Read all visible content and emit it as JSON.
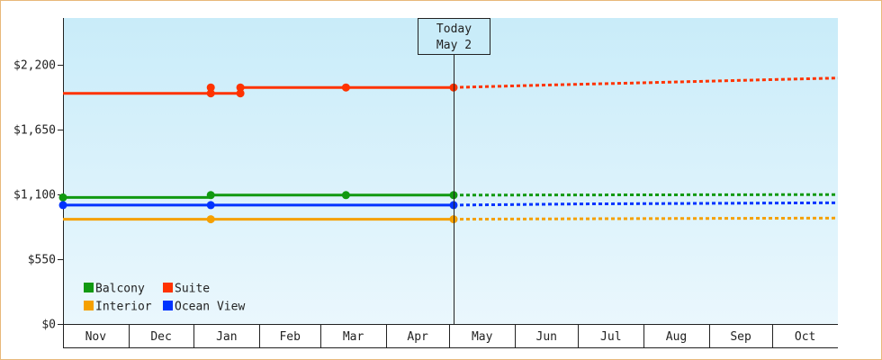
{
  "chart_data": {
    "type": "line",
    "title": "",
    "xlabel": "",
    "ylabel": "",
    "ylim": [
      0,
      2600
    ],
    "y_ticks": [
      {
        "value": 0,
        "label": "$0"
      },
      {
        "value": 550,
        "label": "$550"
      },
      {
        "value": 1100,
        "label": "$1,100"
      },
      {
        "value": 1650,
        "label": "$1,650"
      },
      {
        "value": 2200,
        "label": "$2,200"
      }
    ],
    "x_range": [
      "2023-10-30",
      "2024-10-31"
    ],
    "months": [
      {
        "label": "Nov",
        "start": "2023-10-30",
        "end": "2023-11-30"
      },
      {
        "label": "Dec",
        "start": "2023-11-30",
        "end": "2023-12-31"
      },
      {
        "label": "Jan",
        "start": "2023-12-31",
        "end": "2024-01-31"
      },
      {
        "label": "Feb",
        "start": "2024-01-31",
        "end": "2024-02-29"
      },
      {
        "label": "Mar",
        "start": "2024-02-29",
        "end": "2024-03-31"
      },
      {
        "label": "Apr",
        "start": "2024-03-31",
        "end": "2024-04-30"
      },
      {
        "label": "May",
        "start": "2024-04-30",
        "end": "2024-05-31"
      },
      {
        "label": "Jun",
        "start": "2024-05-31",
        "end": "2024-06-30"
      },
      {
        "label": "Jul",
        "start": "2024-06-30",
        "end": "2024-07-31"
      },
      {
        "label": "Aug",
        "start": "2024-07-31",
        "end": "2024-08-31"
      },
      {
        "label": "Sep",
        "start": "2024-08-31",
        "end": "2024-09-30"
      },
      {
        "label": "Oct",
        "start": "2024-09-30",
        "end": "2024-10-31"
      }
    ],
    "today": {
      "line1": "Today",
      "line2": "May 2",
      "date": "2024-05-02"
    },
    "series": [
      {
        "name": "Suite",
        "color": "#ff3300",
        "history": [
          {
            "x": "2023-10-30",
            "y": 1960
          },
          {
            "x": "2024-01-08",
            "y": 1960
          },
          {
            "x": "2024-01-08",
            "y": 2010
          },
          {
            "x": "2024-01-08",
            "y": 1960
          },
          {
            "x": "2024-01-22",
            "y": 1960
          },
          {
            "x": "2024-01-22",
            "y": 2010
          },
          {
            "x": "2024-03-12",
            "y": 2010
          },
          {
            "x": "2024-05-02",
            "y": 2010
          }
        ],
        "markers": [
          {
            "x": "2024-01-08",
            "y": 1960
          },
          {
            "x": "2024-01-08",
            "y": 2010
          },
          {
            "x": "2024-01-22",
            "y": 1960
          },
          {
            "x": "2024-01-22",
            "y": 2010
          },
          {
            "x": "2024-03-12",
            "y": 2010
          },
          {
            "x": "2024-05-02",
            "y": 2010
          }
        ],
        "forecast": [
          {
            "x": "2024-05-02",
            "y": 2010
          },
          {
            "x": "2024-06-15",
            "y": 2030
          },
          {
            "x": "2024-08-01",
            "y": 2050
          },
          {
            "x": "2024-09-15",
            "y": 2070
          },
          {
            "x": "2024-10-31",
            "y": 2090
          }
        ]
      },
      {
        "name": "Balcony",
        "color": "#119911",
        "history": [
          {
            "x": "2023-10-30",
            "y": 1075
          },
          {
            "x": "2024-01-08",
            "y": 1075
          },
          {
            "x": "2024-01-08",
            "y": 1095
          },
          {
            "x": "2024-03-12",
            "y": 1095
          },
          {
            "x": "2024-05-02",
            "y": 1095
          }
        ],
        "markers": [
          {
            "x": "2023-10-30",
            "y": 1075
          },
          {
            "x": "2024-01-08",
            "y": 1095
          },
          {
            "x": "2024-03-12",
            "y": 1095
          },
          {
            "x": "2024-05-02",
            "y": 1095
          }
        ],
        "forecast": [
          {
            "x": "2024-05-02",
            "y": 1095
          },
          {
            "x": "2024-10-31",
            "y": 1100
          }
        ]
      },
      {
        "name": "Ocean View",
        "color": "#0033ff",
        "history": [
          {
            "x": "2023-10-30",
            "y": 1010
          },
          {
            "x": "2024-01-08",
            "y": 1010
          },
          {
            "x": "2024-05-02",
            "y": 1010
          }
        ],
        "markers": [
          {
            "x": "2023-10-30",
            "y": 1010
          },
          {
            "x": "2024-01-08",
            "y": 1010
          },
          {
            "x": "2024-05-02",
            "y": 1010
          }
        ],
        "forecast": [
          {
            "x": "2024-05-02",
            "y": 1010
          },
          {
            "x": "2024-07-01",
            "y": 1020
          },
          {
            "x": "2024-10-31",
            "y": 1030
          }
        ]
      },
      {
        "name": "Interior",
        "color": "#f5a000",
        "history": [
          {
            "x": "2023-10-30",
            "y": 890
          },
          {
            "x": "2024-01-08",
            "y": 890
          },
          {
            "x": "2024-05-02",
            "y": 890
          }
        ],
        "markers": [
          {
            "x": "2024-01-08",
            "y": 890
          },
          {
            "x": "2024-05-02",
            "y": 890
          }
        ],
        "forecast": [
          {
            "x": "2024-05-02",
            "y": 890
          },
          {
            "x": "2024-07-15",
            "y": 895
          },
          {
            "x": "2024-10-31",
            "y": 900
          }
        ]
      }
    ],
    "legend": {
      "position": "bottom-left",
      "rows": [
        [
          "Balcony",
          "Suite"
        ],
        [
          "Interior",
          "Ocean View"
        ]
      ]
    },
    "background_gradient": [
      "#c9ecf9",
      "#eaf7fd"
    ]
  }
}
